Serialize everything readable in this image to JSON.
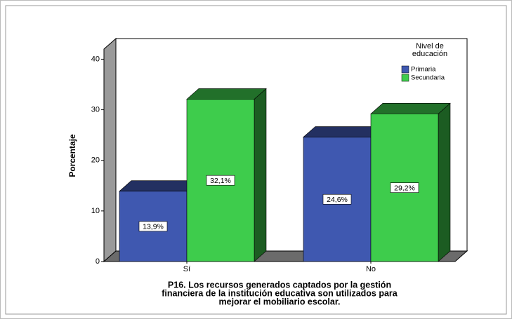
{
  "chart_data": {
    "type": "bar3d",
    "ylabel": "Porcentaje",
    "xlabel": [
      "P16. Los recursos generados captados por la gestión",
      "financiera de la institución educativa son utilizados para",
      "mejorar el mobiliario escolar."
    ],
    "categories": [
      "Sí",
      "No"
    ],
    "legend_title": [
      "Nivel de",
      "educación"
    ],
    "legend_position": "upper right",
    "series": [
      {
        "name": "Primaria",
        "color": "#3f58b0",
        "values": [
          13.9,
          24.6
        ],
        "value_labels": [
          "13,9%",
          "24,6%"
        ]
      },
      {
        "name": "Secundaria",
        "color": "#3ecc4c",
        "values": [
          32.1,
          29.2
        ],
        "value_labels": [
          "32,1%",
          "29,2%"
        ]
      }
    ],
    "ylim": [
      0,
      42
    ],
    "yticks": [
      0,
      10,
      20,
      30,
      40
    ],
    "grid": false
  }
}
